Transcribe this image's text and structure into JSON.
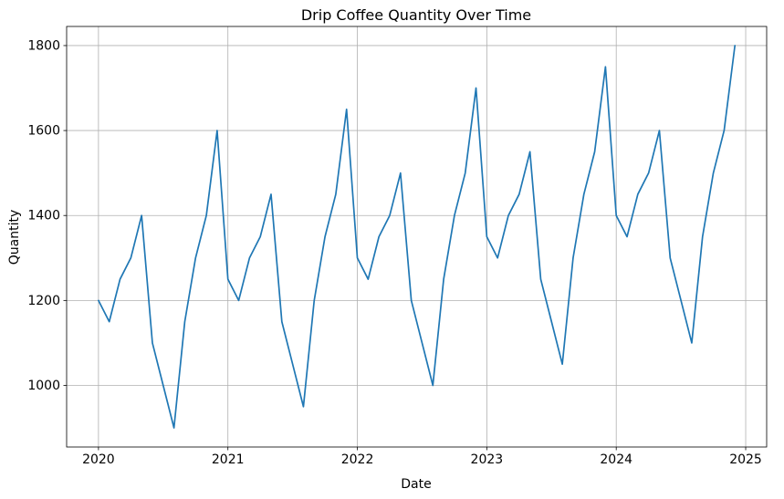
{
  "chart_data": {
    "type": "line",
    "title": "Drip Coffee Quantity Over Time",
    "xlabel": "Date",
    "ylabel": "Quantity",
    "grid": true,
    "legend": "none",
    "line_color": "#1f77b4",
    "series_name": "Drip Coffee Quantity",
    "xticks": [
      2020,
      2021,
      2022,
      2023,
      2024,
      2025
    ],
    "yticks": [
      1000,
      1200,
      1400,
      1600,
      1800
    ],
    "xlim": [
      2019.754,
      2025.162
    ],
    "ylim": [
      855,
      1845
    ],
    "dates": [
      "2020-01",
      "2020-02",
      "2020-03",
      "2020-04",
      "2020-05",
      "2020-06",
      "2020-07",
      "2020-08",
      "2020-09",
      "2020-10",
      "2020-11",
      "2020-12",
      "2021-01",
      "2021-02",
      "2021-03",
      "2021-04",
      "2021-05",
      "2021-06",
      "2021-07",
      "2021-08",
      "2021-09",
      "2021-10",
      "2021-11",
      "2021-12",
      "2022-01",
      "2022-02",
      "2022-03",
      "2022-04",
      "2022-05",
      "2022-06",
      "2022-07",
      "2022-08",
      "2022-09",
      "2022-10",
      "2022-11",
      "2022-12",
      "2023-01",
      "2023-02",
      "2023-03",
      "2023-04",
      "2023-05",
      "2023-06",
      "2023-07",
      "2023-08",
      "2023-09",
      "2023-10",
      "2023-11",
      "2023-12",
      "2024-01",
      "2024-02",
      "2024-03",
      "2024-04",
      "2024-05",
      "2024-06",
      "2024-07",
      "2024-08",
      "2024-09",
      "2024-10",
      "2024-11",
      "2024-12"
    ],
    "values": [
      1200,
      1150,
      1250,
      1300,
      1400,
      1100,
      1000,
      900,
      1150,
      1300,
      1400,
      1600,
      1250,
      1200,
      1300,
      1350,
      1450,
      1150,
      1050,
      950,
      1200,
      1350,
      1450,
      1650,
      1300,
      1250,
      1350,
      1400,
      1500,
      1200,
      1100,
      1000,
      1250,
      1400,
      1500,
      1700,
      1350,
      1300,
      1400,
      1450,
      1550,
      1250,
      1150,
      1050,
      1300,
      1450,
      1550,
      1750,
      1400,
      1350,
      1450,
      1500,
      1600,
      1300,
      1200,
      1100,
      1350,
      1500,
      1600,
      1800
    ]
  }
}
